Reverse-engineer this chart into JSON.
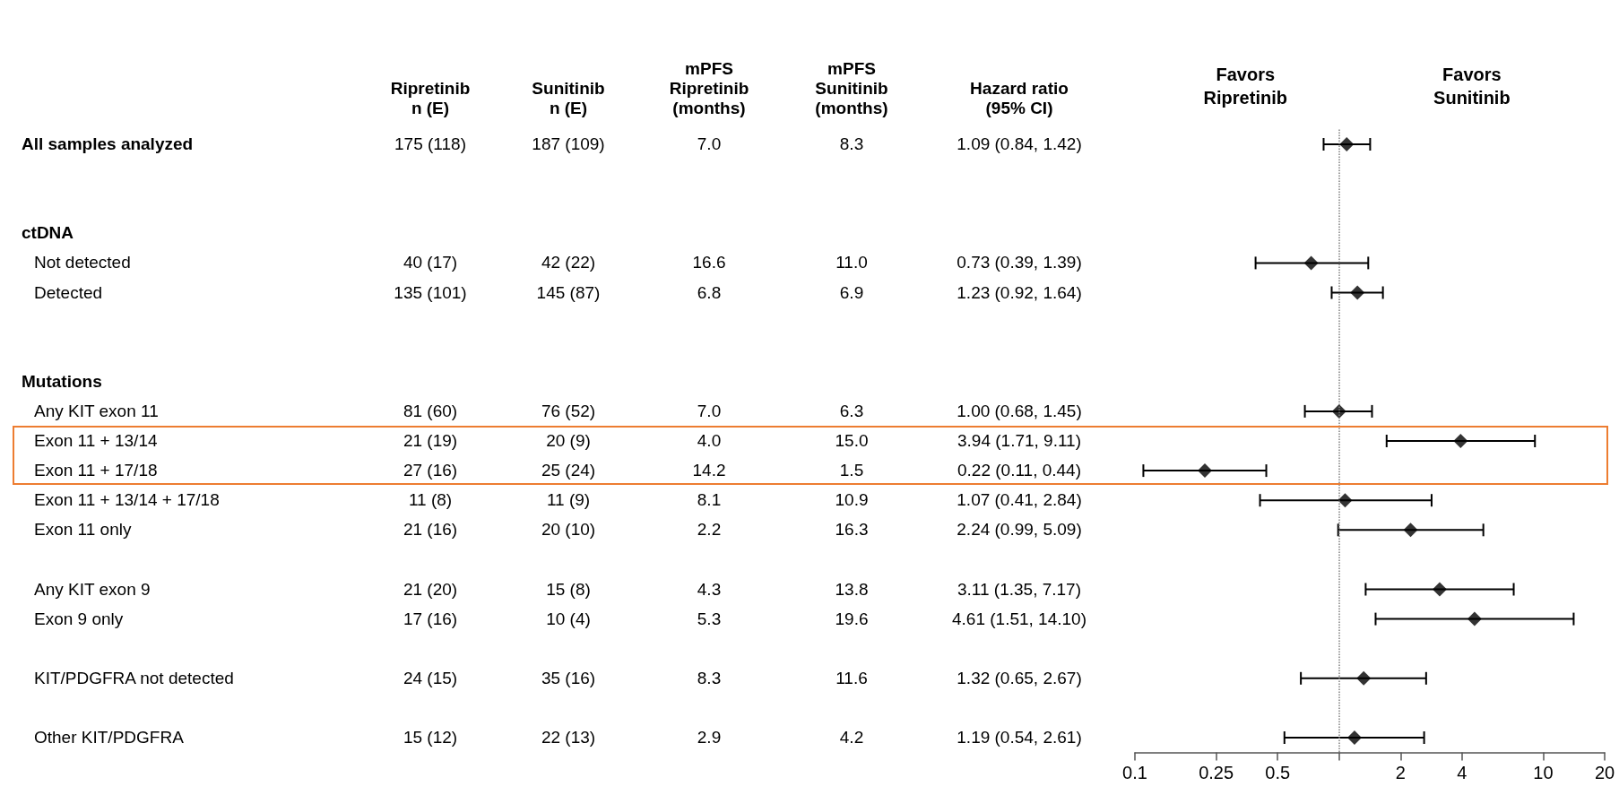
{
  "chart_data": [
    {
      "type": "other",
      "categories": [
        "Ripretinib\nn (E)",
        "Sunitinib\nn (E)",
        "mPFS\nRipretinib\n(months)",
        "mPFS\nSunitinib\n(months)",
        "Hazard ratio\n(95% CI)"
      ],
      "y_categories": [
        "All samples analyzed",
        null,
        null,
        "ctDNA",
        "Not detected",
        "Detected",
        null,
        null,
        "Mutations",
        "Any KIT exon 11",
        "Exon 11 + 13/14",
        "Exon 11 + 17/18",
        "Exon 11 + 13/14 + 17/18",
        "Exon 11 only",
        null,
        "Any KIT exon 9",
        "Exon 9 only",
        null,
        "KIT/PDGFRA not detected",
        null,
        "Other KIT/PDGFRA"
      ],
      "cell_labels": [
        [
          "175 (118)",
          "187 (109)",
          "7.0",
          "8.3",
          "1.09 (0.84, 1.42)"
        ],
        [
          null,
          null,
          null,
          null,
          null
        ],
        [
          null,
          null,
          null,
          null,
          null
        ],
        [
          null,
          null,
          null,
          null,
          null
        ],
        [
          "40 (17)",
          "42 (22)",
          "16.6",
          "11.0",
          "0.73 (0.39, 1.39)"
        ],
        [
          "135 (101)",
          "145 (87)",
          "6.8",
          "6.9",
          "1.23 (0.92, 1.64)"
        ],
        [
          null,
          null,
          null,
          null,
          null
        ],
        [
          null,
          null,
          null,
          null,
          null
        ],
        [
          null,
          null,
          null,
          null,
          null
        ],
        [
          "81 (60)",
          "76 (52)",
          "7.0",
          "6.3",
          "1.00 (0.68, 1.45)"
        ],
        [
          "21 (19)",
          "20 (9)",
          "4.0",
          "15.0",
          "3.94 (1.71, 9.11)"
        ],
        [
          "27 (16)",
          "25 (24)",
          "14.2",
          "1.5",
          "0.22 (0.11, 0.44)"
        ],
        [
          "11 (8)",
          "11 (9)",
          "8.1",
          "10.9",
          "1.07 (0.41, 2.84)"
        ],
        [
          "21 (16)",
          "20 (10)",
          "2.2",
          "16.3",
          "2.24 (0.99, 5.09)"
        ],
        [
          null,
          null,
          null,
          null,
          null
        ],
        [
          "21 (20)",
          "15 (8)",
          "4.3",
          "13.8",
          "3.11 (1.35, 7.17)"
        ],
        [
          "17 (16)",
          "10 (4)",
          "5.3",
          "19.6",
          "4.61 (1.51, 14.10)"
        ],
        [
          null,
          null,
          null,
          null,
          null
        ],
        [
          "24 (15)",
          "35 (16)",
          "8.3",
          "11.6",
          "1.32 (0.65, 2.67)"
        ],
        [
          null,
          null,
          null,
          null,
          null
        ],
        [
          "15 (12)",
          "22 (13)",
          "2.9",
          "4.2",
          "1.19 (0.54, 2.61)"
        ]
      ]
    },
    {
      "type": "scatter",
      "orientation": "horizontal",
      "log": "x",
      "marker": "diamond",
      "grid": false,
      "categories": [
        null,
        null,
        null,
        null,
        null,
        null,
        null,
        null,
        null,
        null,
        null,
        null,
        null,
        null,
        null,
        null,
        null,
        null,
        null,
        null,
        null
      ],
      "series": [
        {
          "color": "#000000",
          "values": [
            1.09,
            null,
            null,
            null,
            0.73,
            1.23,
            null,
            null,
            null,
            1.0,
            3.94,
            0.22,
            1.07,
            2.24,
            null,
            3.11,
            4.61,
            null,
            1.32,
            null,
            1.19
          ],
          "errors": [
            [
              0.84,
              1.42
            ],
            null,
            null,
            null,
            [
              0.39,
              1.39
            ],
            [
              0.92,
              1.64
            ],
            null,
            null,
            null,
            [
              0.68,
              1.45
            ],
            [
              1.71,
              9.11
            ],
            [
              0.11,
              0.44
            ],
            [
              0.41,
              2.84
            ],
            [
              0.99,
              5.09
            ],
            null,
            [
              1.35,
              7.17
            ],
            [
              1.51,
              14.1
            ],
            null,
            [
              0.65,
              2.67
            ],
            null,
            [
              0.54,
              2.61
            ]
          ]
        }
      ],
      "xlim": [
        0.1,
        20
      ],
      "xticks": [
        0.1,
        0.25,
        0.5,
        {
          "value": 1,
          "label": null
        },
        2,
        4,
        10,
        20
      ],
      "ref_lines": [
        {
          "axis": "x",
          "value": 1,
          "label": null,
          "color": "#808080",
          "line_style": "dotted"
        }
      ],
      "annotations": [
        "Favors\nRipretinib",
        "Favors\nSunitinib"
      ]
    }
  ]
}
